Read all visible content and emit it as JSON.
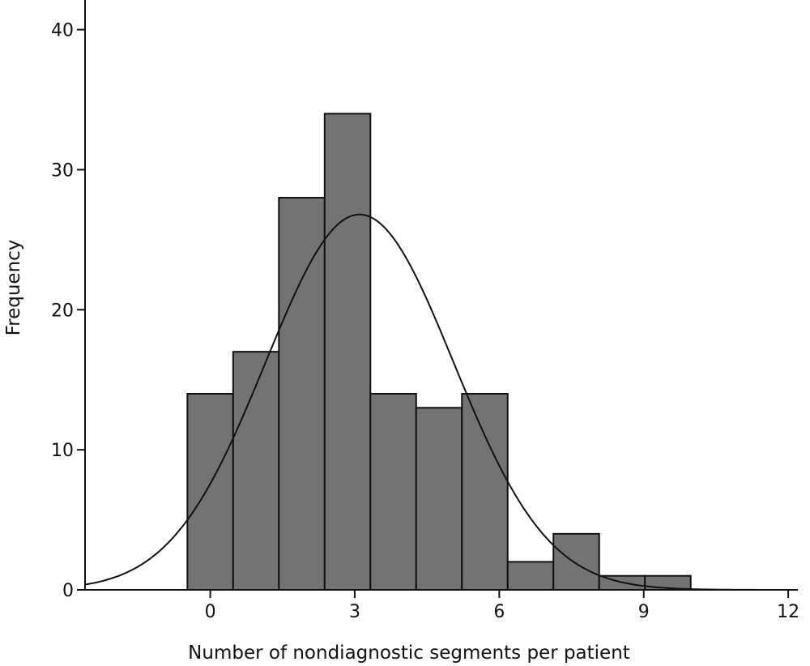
{
  "chart_data": {
    "type": "bar",
    "subtype": "histogram",
    "xlabel": "Number of nondiagnostic segments per patient",
    "ylabel": "Frequency",
    "xlim": [
      -2.6,
      12.2
    ],
    "ylim": [
      0,
      42
    ],
    "xticks": [
      0,
      3,
      6,
      9,
      12
    ],
    "yticks": [
      0,
      10,
      20,
      30,
      40
    ],
    "bin_width": 0.95,
    "bins": [
      {
        "center": 0,
        "count": 14
      },
      {
        "center": 0.95,
        "count": 17
      },
      {
        "center": 1.9,
        "count": 28
      },
      {
        "center": 2.85,
        "count": 34
      },
      {
        "center": 3.8,
        "count": 14
      },
      {
        "center": 4.75,
        "count": 13
      },
      {
        "center": 5.7,
        "count": 14
      },
      {
        "center": 6.65,
        "count": 2
      },
      {
        "center": 7.6,
        "count": 4
      },
      {
        "center": 8.55,
        "count": 1
      },
      {
        "center": 9.5,
        "count": 1
      }
    ],
    "normal_curve": {
      "mean": 3.1,
      "sd": 1.95,
      "peak": 26.8
    },
    "grid": false,
    "legend": "none"
  }
}
